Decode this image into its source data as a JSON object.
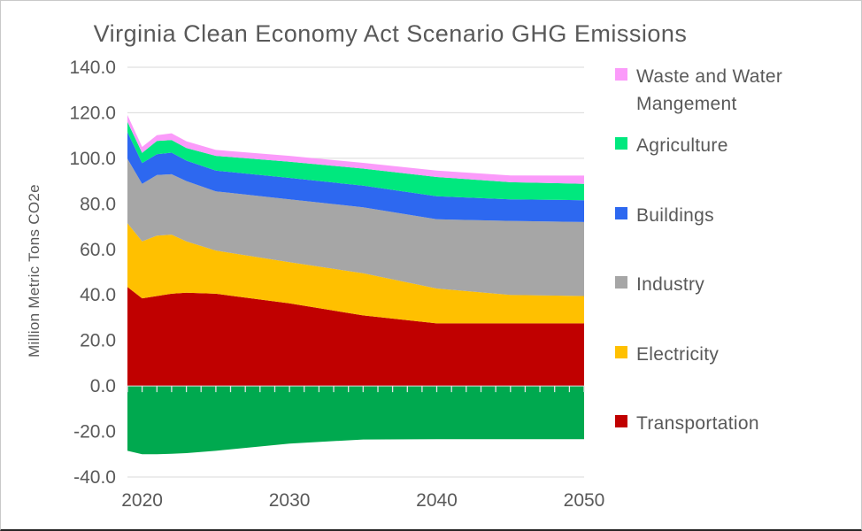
{
  "styles": {
    "text_color": "#595959",
    "gridline_color": "#D9D9D9",
    "zero_axis_color": "#DCDCDC",
    "axis_tick_color": "#E3E3E3",
    "background": "#FFFFFF"
  },
  "chart_data": {
    "type": "area",
    "stacked": true,
    "title": "Virginia Clean Economy Act Scenario GHG Emissions",
    "xlabel": "",
    "ylabel": "Million Metric Tons CO2e",
    "xlim": [
      2019,
      2050
    ],
    "ylim": [
      -40,
      140
    ],
    "grid": true,
    "legend_position": "right",
    "x_tick_values": [
      2020,
      2030,
      2040,
      2050
    ],
    "x_tick_labels": [
      "2020",
      "2030",
      "2040",
      "2050"
    ],
    "y_tick_values": [
      140,
      120,
      100,
      80,
      60,
      40,
      20,
      0,
      -20,
      -40
    ],
    "y_tick_labels": [
      "140.0",
      "120.0",
      "100.0",
      "80.0",
      "60.0",
      "40.0",
      "20.0",
      "0.0",
      "-20.0",
      "-40.0"
    ],
    "x": [
      2019,
      2020,
      2021,
      2022,
      2023,
      2025,
      2030,
      2035,
      2040,
      2045,
      2050
    ],
    "series": [
      {
        "name": "Transportation",
        "color": "#C00000",
        "values": [
          43.5,
          38.5,
          39.5,
          40.5,
          41.0,
          40.5,
          36.3,
          31.0,
          27.5,
          27.5,
          27.5
        ]
      },
      {
        "name": "Electricity",
        "color": "#FFC000",
        "values": [
          28.0,
          25.0,
          26.5,
          26.0,
          22.5,
          19.0,
          18.1,
          18.5,
          15.3,
          12.5,
          12.0
        ]
      },
      {
        "name": "Industry",
        "color": "#A6A6A6",
        "values": [
          28.3,
          25.3,
          26.7,
          26.5,
          26.5,
          26.0,
          27.6,
          29.0,
          30.4,
          32.5,
          32.5
        ]
      },
      {
        "name": "Buildings",
        "color": "#2D68F0",
        "values": [
          11.7,
          9.1,
          9.1,
          9.5,
          9.0,
          9.1,
          9.4,
          9.5,
          10.1,
          9.5,
          9.6
        ]
      },
      {
        "name": "Agriculture",
        "color": "#00E87E",
        "values": [
          4.5,
          4.5,
          5.8,
          5.5,
          5.5,
          6.5,
          7.1,
          7.5,
          8.5,
          7.5,
          7.2
        ]
      },
      {
        "name": "Waste and Water Mangement",
        "color": "#FB9BFA",
        "values": [
          3.0,
          2.6,
          2.6,
          3.0,
          3.0,
          2.6,
          2.6,
          2.5,
          2.8,
          3.0,
          3.6
        ]
      }
    ],
    "negative_series": {
      "name": "",
      "unlabeled": true,
      "color": "#00A94F",
      "values": [
        -28.5,
        -30.0,
        -30.0,
        -29.8,
        -29.5,
        -28.5,
        -25.3,
        -23.5,
        -23.4,
        -23.4,
        -23.4
      ]
    }
  },
  "legend": {
    "items": [
      {
        "label": "Waste and Water\nMangement",
        "color": "#FB9BFA"
      },
      {
        "label": "Agriculture",
        "color": "#00E87E"
      },
      {
        "label": "Buildings",
        "color": "#2D68F0"
      },
      {
        "label": "Industry",
        "color": "#A6A6A6"
      },
      {
        "label": "Electricity",
        "color": "#FFC000"
      },
      {
        "label": "Transportation",
        "color": "#C00000"
      }
    ]
  }
}
